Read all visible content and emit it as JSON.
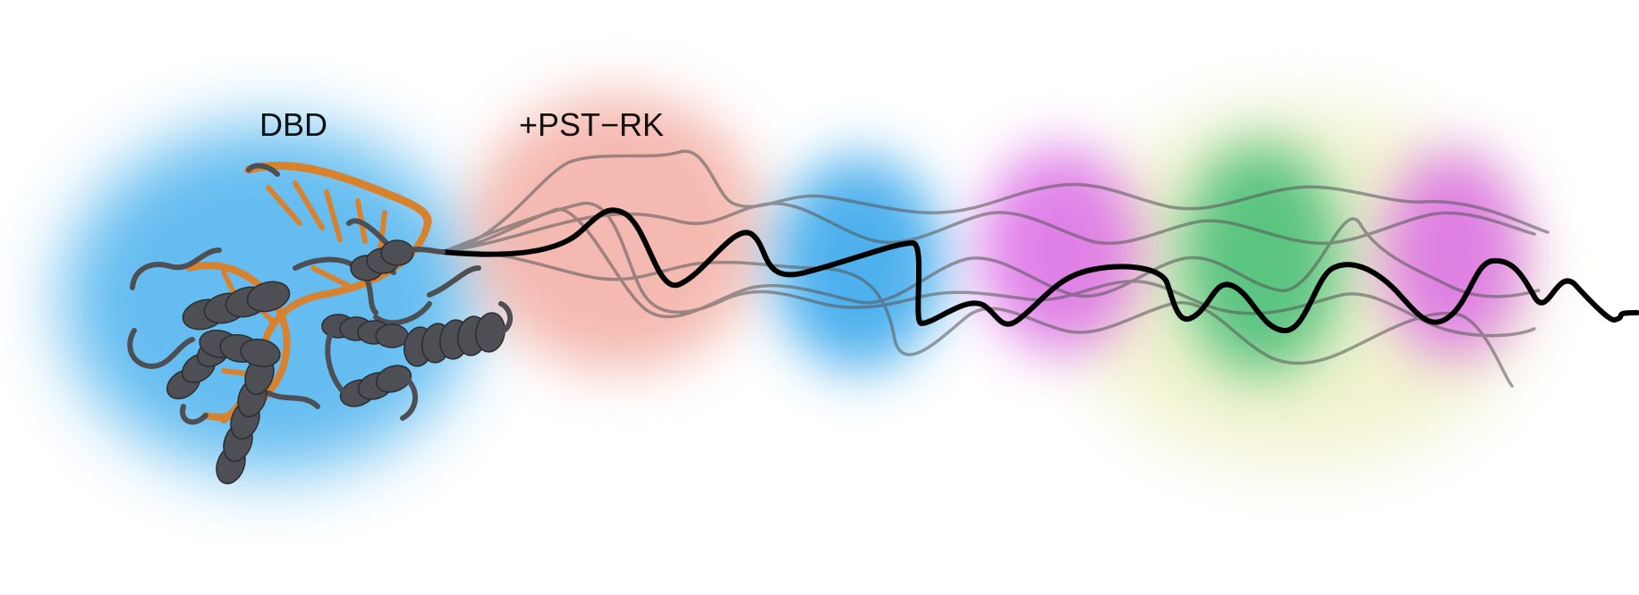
{
  "labels": {
    "dbd": "DBD",
    "pst_rk": "+PST−RK"
  },
  "colors": {
    "dbd_halo": "#4ab1ee",
    "pst_rk_halo": "#ee8c7e",
    "blue_domain": "#3aa8ec",
    "magenta_domain": "#dc6ce6",
    "yellow_domain": "#ecefc0",
    "green_domain": "#4cbf78",
    "protein_helix": "#4d4f54",
    "dna": "#d9822e",
    "main_chain": "#000000",
    "ensemble_chain": "#555555"
  },
  "icons": {
    "protein_structure": "protein-dna-ribbon-icon"
  }
}
